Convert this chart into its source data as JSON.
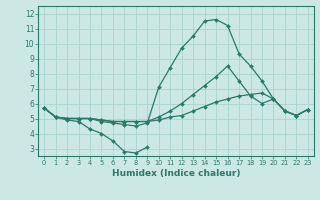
{
  "bg_color": "#cce8e4",
  "grid_color": "#aad4ce",
  "line_color": "#2a7a6a",
  "xlabel": "Humidex (Indice chaleur)",
  "xlim": [
    -0.5,
    23.5
  ],
  "ylim": [
    2.5,
    12.5
  ],
  "xticks": [
    0,
    1,
    2,
    3,
    4,
    5,
    6,
    7,
    8,
    9,
    10,
    11,
    12,
    13,
    14,
    15,
    16,
    17,
    18,
    19,
    20,
    21,
    22,
    23
  ],
  "yticks": [
    3,
    4,
    5,
    6,
    7,
    8,
    9,
    10,
    11,
    12
  ],
  "lines": [
    {
      "x": [
        0,
        1,
        2,
        3,
        4,
        5,
        6,
        7,
        8,
        9
      ],
      "y": [
        5.7,
        5.1,
        4.9,
        4.8,
        4.3,
        4.0,
        3.5,
        2.8,
        2.7,
        3.1
      ]
    },
    {
      "x": [
        0,
        1,
        2,
        3,
        4,
        5,
        6,
        7,
        8,
        9,
        10,
        11,
        12,
        13,
        14,
        15,
        16,
        17,
        18,
        19,
        20,
        21,
        22,
        23
      ],
      "y": [
        5.7,
        5.1,
        5.0,
        5.0,
        5.0,
        4.9,
        4.8,
        4.8,
        4.8,
        4.8,
        4.9,
        5.1,
        5.2,
        5.5,
        5.8,
        6.1,
        6.3,
        6.5,
        6.6,
        6.7,
        6.3,
        5.5,
        5.2,
        5.6
      ]
    },
    {
      "x": [
        0,
        1,
        2,
        3,
        4,
        5,
        6,
        7,
        8,
        9,
        10,
        11,
        12,
        13,
        14,
        15,
        16,
        17,
        18,
        19,
        20,
        21,
        22,
        23
      ],
      "y": [
        5.7,
        5.1,
        5.0,
        5.0,
        5.0,
        4.9,
        4.8,
        4.8,
        4.8,
        4.8,
        5.1,
        5.5,
        6.0,
        6.6,
        7.2,
        7.8,
        8.5,
        7.5,
        6.5,
        6.0,
        6.3,
        5.5,
        5.2,
        5.6
      ]
    },
    {
      "x": [
        0,
        1,
        2,
        3,
        4,
        5,
        6,
        7,
        8,
        9,
        10,
        11,
        12,
        13,
        14,
        15,
        16,
        17,
        18,
        19,
        20,
        21,
        22,
        23
      ],
      "y": [
        5.7,
        5.1,
        5.0,
        5.0,
        5.0,
        4.8,
        4.7,
        4.6,
        4.5,
        4.7,
        7.1,
        8.4,
        9.7,
        10.5,
        11.5,
        11.6,
        11.2,
        9.3,
        8.5,
        7.5,
        6.3,
        5.5,
        5.2,
        5.6
      ]
    }
  ]
}
